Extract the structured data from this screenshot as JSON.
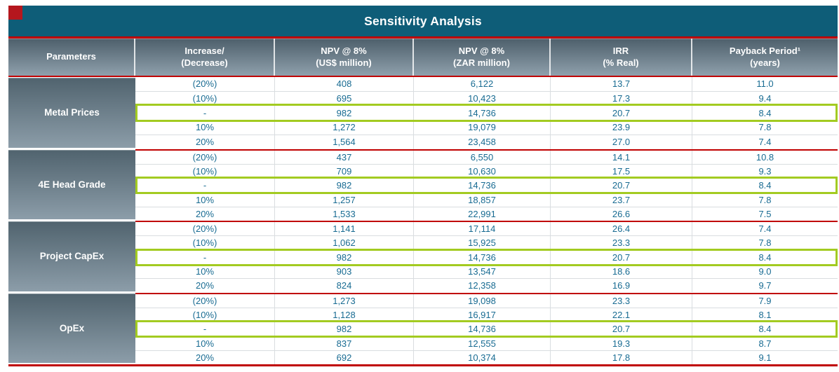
{
  "title": "Sensitivity Analysis",
  "colors": {
    "title_bar_teal": "#0e5d78",
    "accent_square_red": "#b5171e",
    "rule_red": "#c00000",
    "base_case_highlight_green": "#a3cb21",
    "value_text_blue": "#186b92"
  },
  "header": {
    "columns": [
      {
        "id": "parameters",
        "lines": [
          "Parameters"
        ]
      },
      {
        "id": "change",
        "lines": [
          "Increase/",
          "(Decrease)"
        ]
      },
      {
        "id": "npv-usd",
        "lines": [
          "NPV @ 8%",
          "(US$ million)"
        ]
      },
      {
        "id": "npv-zar",
        "lines": [
          "NPV @ 8%",
          "(ZAR million)"
        ]
      },
      {
        "id": "irr",
        "lines": [
          "IRR",
          "(% Real)"
        ]
      },
      {
        "id": "payback",
        "lines": [
          "Payback Period¹",
          "(years)"
        ]
      }
    ]
  },
  "groups": [
    {
      "parameter": "Metal Prices",
      "rows": [
        {
          "change": "(20%)",
          "npv_usd": "408",
          "npv_zar": "6,122",
          "irr": "13.7",
          "payback": "11.0",
          "base": false
        },
        {
          "change": "(10%)",
          "npv_usd": "695",
          "npv_zar": "10,423",
          "irr": "17.3",
          "payback": "9.4",
          "base": false
        },
        {
          "change": "-",
          "npv_usd": "982",
          "npv_zar": "14,736",
          "irr": "20.7",
          "payback": "8.4",
          "base": true
        },
        {
          "change": "10%",
          "npv_usd": "1,272",
          "npv_zar": "19,079",
          "irr": "23.9",
          "payback": "7.8",
          "base": false
        },
        {
          "change": "20%",
          "npv_usd": "1,564",
          "npv_zar": "23,458",
          "irr": "27.0",
          "payback": "7.4",
          "base": false
        }
      ]
    },
    {
      "parameter": "4E Head Grade",
      "rows": [
        {
          "change": "(20%)",
          "npv_usd": "437",
          "npv_zar": "6,550",
          "irr": "14.1",
          "payback": "10.8",
          "base": false
        },
        {
          "change": "(10%)",
          "npv_usd": "709",
          "npv_zar": "10,630",
          "irr": "17.5",
          "payback": "9.3",
          "base": false
        },
        {
          "change": "-",
          "npv_usd": "982",
          "npv_zar": "14,736",
          "irr": "20.7",
          "payback": "8.4",
          "base": true
        },
        {
          "change": "10%",
          "npv_usd": "1,257",
          "npv_zar": "18,857",
          "irr": "23.7",
          "payback": "7.8",
          "base": false
        },
        {
          "change": "20%",
          "npv_usd": "1,533",
          "npv_zar": "22,991",
          "irr": "26.6",
          "payback": "7.5",
          "base": false
        }
      ]
    },
    {
      "parameter": "Project CapEx",
      "rows": [
        {
          "change": "(20%)",
          "npv_usd": "1,141",
          "npv_zar": "17,114",
          "irr": "26.4",
          "payback": "7.4",
          "base": false
        },
        {
          "change": "(10%)",
          "npv_usd": "1,062",
          "npv_zar": "15,925",
          "irr": "23.3",
          "payback": "7.8",
          "base": false
        },
        {
          "change": "-",
          "npv_usd": "982",
          "npv_zar": "14,736",
          "irr": "20.7",
          "payback": "8.4",
          "base": true
        },
        {
          "change": "10%",
          "npv_usd": "903",
          "npv_zar": "13,547",
          "irr": "18.6",
          "payback": "9.0",
          "base": false
        },
        {
          "change": "20%",
          "npv_usd": "824",
          "npv_zar": "12,358",
          "irr": "16.9",
          "payback": "9.7",
          "base": false
        }
      ]
    },
    {
      "parameter": "OpEx",
      "rows": [
        {
          "change": "(20%)",
          "npv_usd": "1,273",
          "npv_zar": "19,098",
          "irr": "23.3",
          "payback": "7.9",
          "base": false
        },
        {
          "change": "(10%)",
          "npv_usd": "1,128",
          "npv_zar": "16,917",
          "irr": "22.1",
          "payback": "8.1",
          "base": false
        },
        {
          "change": "-",
          "npv_usd": "982",
          "npv_zar": "14,736",
          "irr": "20.7",
          "payback": "8.4",
          "base": true
        },
        {
          "change": "10%",
          "npv_usd": "837",
          "npv_zar": "12,555",
          "irr": "19.3",
          "payback": "8.7",
          "base": false
        },
        {
          "change": "20%",
          "npv_usd": "692",
          "npv_zar": "10,374",
          "irr": "17.8",
          "payback": "9.1",
          "base": false
        }
      ]
    }
  ]
}
